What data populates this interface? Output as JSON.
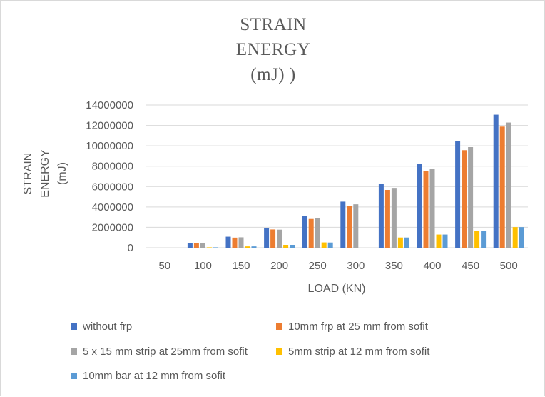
{
  "chart_data": {
    "type": "bar",
    "title_lines": [
      "STRAIN",
      "ENERGY",
      "(mJ) )"
    ],
    "xlabel": "LOAD (KN)",
    "ylabel_lines": [
      "STRAIN",
      "ENERGY",
      "(mJ)"
    ],
    "categories": [
      "50",
      "100",
      "150",
      "200",
      "250",
      "300",
      "350",
      "400",
      "450",
      "500"
    ],
    "ylim": [
      0,
      14000000
    ],
    "yticks": [
      "0",
      "2000000",
      "4000000",
      "6000000",
      "8000000",
      "10000000",
      "12000000",
      "14000000"
    ],
    "grid": true,
    "legend_position": "bottom",
    "series": [
      {
        "name": "without frp",
        "color": "#4472c4",
        "values": [
          0,
          460000,
          1080000,
          1950000,
          3100000,
          4520000,
          6230000,
          8230000,
          10480000,
          13050000
        ]
      },
      {
        "name": "10mm frp at 25 mm from sofit",
        "color": "#ed7d31",
        "values": [
          0,
          420000,
          990000,
          1790000,
          2820000,
          4120000,
          5670000,
          7490000,
          9570000,
          11880000
        ]
      },
      {
        "name": "5 x 15 mm strip at 25mm from sofit",
        "color": "#a5a5a5",
        "values": [
          0,
          440000,
          1020000,
          1770000,
          2910000,
          4260000,
          5870000,
          7760000,
          9870000,
          12280000
        ]
      },
      {
        "name": "5mm strip at 12 mm from sofit",
        "color": "#ffc000",
        "values": [
          0,
          40000,
          130000,
          280000,
          520000,
          0,
          1000000,
          1290000,
          1660000,
          2020000
        ]
      },
      {
        "name": "10mm bar at 12 mm from sofit",
        "color": "#5b9bd5",
        "values": [
          0,
          40000,
          130000,
          280000,
          510000,
          0,
          1000000,
          1290000,
          1660000,
          2020000
        ]
      }
    ]
  }
}
